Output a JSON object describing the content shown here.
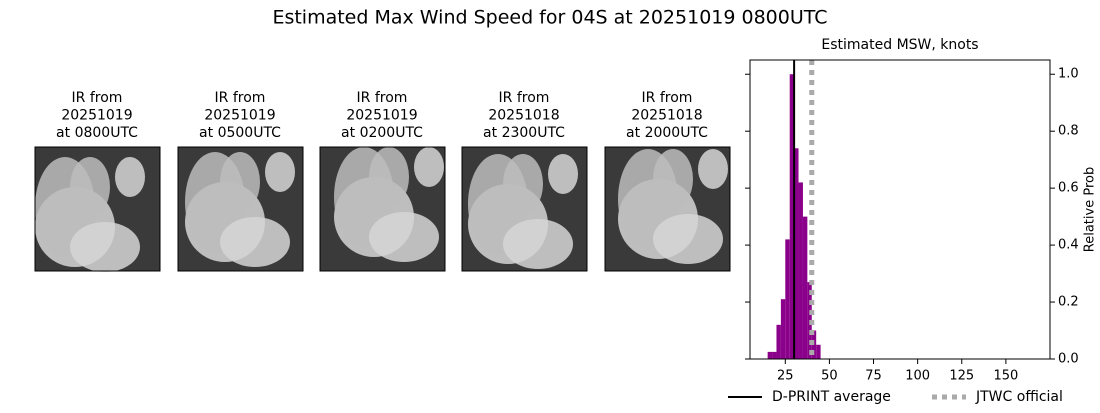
{
  "header": {
    "title": "Estimated Max Wind Speed for 04S at 20251019 0800UTC"
  },
  "panels": [
    {
      "lines": [
        "IR from",
        "20251019",
        "at 0800UTC"
      ]
    },
    {
      "lines": [
        "IR from",
        "20251019",
        "at 0500UTC"
      ]
    },
    {
      "lines": [
        "IR from",
        "20251019",
        "at 0200UTC"
      ]
    },
    {
      "lines": [
        "IR from",
        "20251018",
        "at 2300UTC"
      ]
    },
    {
      "lines": [
        "IR from",
        "20251018",
        "at 2000UTC"
      ]
    }
  ],
  "chart_data": {
    "type": "histogram",
    "title": "Estimated MSW, knots",
    "y_label": "Relative Prob",
    "bins": [
      15,
      17.5,
      20,
      22.5,
      25,
      27.5,
      30,
      32.5,
      35,
      37.5,
      40,
      42.5,
      45
    ],
    "values": [
      0.025,
      0.025,
      0.12,
      0.21,
      0.42,
      1.0,
      0.74,
      0.62,
      0.5,
      0.27,
      0.1,
      0.05
    ],
    "color": "#8b008b",
    "xlim": [
      5,
      175
    ],
    "xticks": [
      25,
      50,
      75,
      100,
      125,
      150
    ],
    "ylim": [
      0,
      1.05
    ],
    "yticks": [
      {
        "value": 0,
        "label": "0.0"
      },
      {
        "value": 0.2,
        "label": "0.2"
      },
      {
        "value": 0.4,
        "label": "0.4"
      },
      {
        "value": 0.6,
        "label": "0.6"
      },
      {
        "value": 0.8,
        "label": "0.8"
      },
      {
        "value": 1.0,
        "label": "1.0"
      }
    ],
    "vlines": [
      {
        "name": "D-PRINT average",
        "value": 30,
        "color": "#000000",
        "style": "solid"
      },
      {
        "name": "JTWC official",
        "value": 40,
        "color": "#aaaaaa",
        "style": "dotted"
      }
    ],
    "legend": "lower center"
  }
}
